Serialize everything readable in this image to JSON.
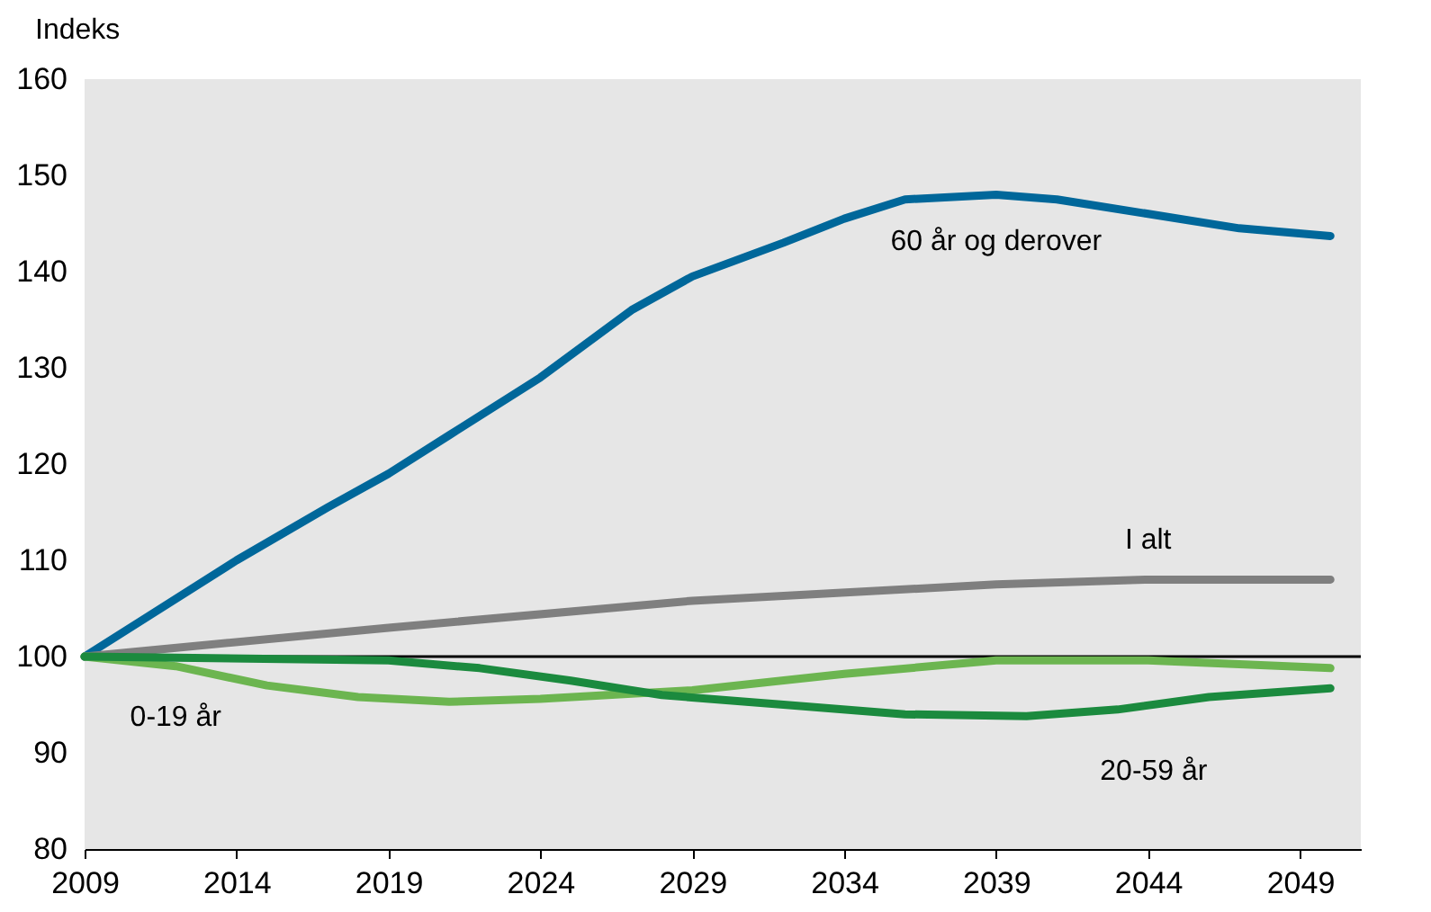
{
  "chart_data": {
    "type": "line",
    "ylabel": "Indeks",
    "xlim": [
      2009,
      2051
    ],
    "xticks": [
      2009,
      2014,
      2019,
      2024,
      2029,
      2034,
      2039,
      2044,
      2049
    ],
    "ylim": [
      80,
      160
    ],
    "yticks": [
      80,
      90,
      100,
      110,
      120,
      130,
      140,
      150,
      160
    ],
    "grid": false,
    "line_style": "solid",
    "marker": "none",
    "series": [
      {
        "name": "60 år og derover",
        "color": "#00679a",
        "x": [
          2009,
          2011,
          2014,
          2017,
          2019,
          2021,
          2024,
          2027,
          2029,
          2032,
          2034,
          2036,
          2039,
          2041,
          2044,
          2047,
          2050
        ],
        "values": [
          100,
          104,
          110,
          115.5,
          119,
          123,
          129,
          136,
          139.5,
          143,
          145.5,
          147.5,
          148,
          147.5,
          146,
          144.5,
          143.7
        ]
      },
      {
        "name": "I alt",
        "color": "#7f7f7f",
        "x": [
          2009,
          2019,
          2029,
          2039,
          2044,
          2050
        ],
        "values": [
          100,
          103,
          105.8,
          107.5,
          108,
          108
        ]
      },
      {
        "name": "0-19 år",
        "color": "#6cb550",
        "x": [
          2009,
          2012,
          2015,
          2018,
          2021,
          2024,
          2029,
          2034,
          2039,
          2044,
          2050
        ],
        "values": [
          100,
          99,
          97,
          95.8,
          95.3,
          95.6,
          96.5,
          98.2,
          99.6,
          99.6,
          98.8
        ]
      },
      {
        "name": "20-59 år",
        "color": "#1b8a3e",
        "x": [
          2009,
          2019,
          2022,
          2025,
          2028,
          2032,
          2036,
          2040,
          2043,
          2046,
          2050
        ],
        "values": [
          100,
          99.6,
          98.8,
          97.5,
          96,
          95,
          94,
          93.8,
          94.5,
          95.8,
          96.7
        ]
      }
    ],
    "ref_lines": [
      {
        "axis": "y",
        "value": 100,
        "color": "#000000",
        "line_style": "solid"
      }
    ]
  }
}
